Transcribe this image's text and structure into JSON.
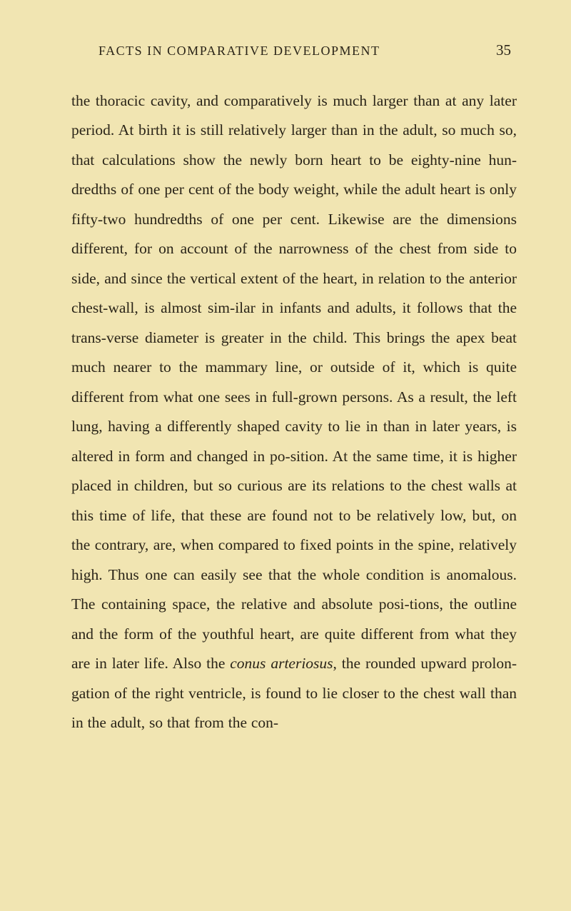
{
  "header": {
    "title": "FACTS IN COMPARATIVE DEVELOPMENT",
    "page_number": "35"
  },
  "body": {
    "part1": "the thoracic cavity, and comparatively is much larger than at any later period. At birth it is still relatively larger than in the adult, so much so, that calculations show the newly born heart to be eighty-nine hun-dredths of one per cent of the body weight, while the adult heart is only fifty-two hundredths of one per cent. Likewise are the dimensions different, for on account of the narrowness of the chest from side to side, and since the vertical extent of the heart, in relation to the anterior chest-wall, is almost sim-ilar in infants and adults, it follows that the trans-verse diameter is greater in the child. This brings the apex beat much nearer to the mammary line, or outside of it, which is quite different from what one sees in full-grown persons. As a result, the left lung, having a differently shaped cavity to lie in than in later years, is altered in form and changed in po-sition. At the same time, it is higher placed in children, but so curious are its relations to the chest walls at this time of life, that these are found not to be relatively low, but, on the contrary, are, when compared to fixed points in the spine, relatively high. Thus one can easily see that the whole condition is anomalous. The containing space, the relative and absolute posi-tions, the outline and the form of the youthful heart, are quite different from what they are in later life. Also the ",
    "italic": "conus arteriosus",
    "part2": ", the rounded upward prolon-gation of the right ventricle, is found to lie closer to the chest wall than in the adult, so that from the con-"
  },
  "colors": {
    "background": "#f1e5b2",
    "text": "#2a2418"
  },
  "typography": {
    "body_fontsize": 21.5,
    "header_fontsize": 18,
    "pagenum_fontsize": 21,
    "line_height": 1.93,
    "font_family": "Georgia, Times New Roman, serif"
  }
}
